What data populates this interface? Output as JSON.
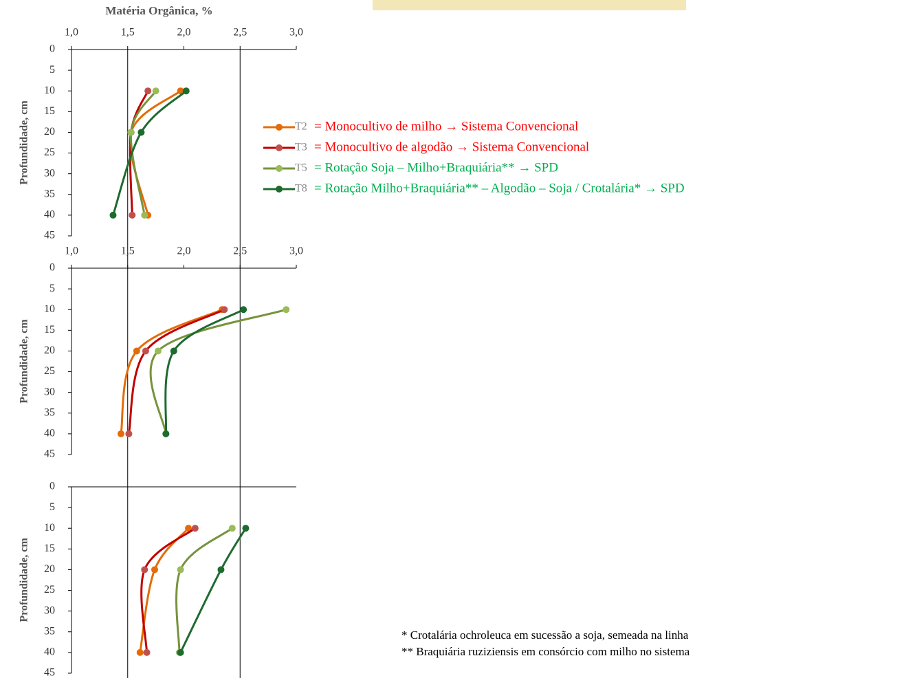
{
  "chart_data": [
    {
      "type": "line",
      "title": "Matéria Orgânica, %",
      "ylabel": "Profundidade, cm",
      "xlim": [
        1,
        3
      ],
      "xticks": [
        {
          "value": 1,
          "label": "1,0"
        },
        {
          "value": 1.5,
          "label": "1,5"
        },
        {
          "value": 2,
          "label": "2,0"
        },
        {
          "value": 2.5,
          "label": "2,5"
        },
        {
          "value": 3,
          "label": "3,0"
        }
      ],
      "ylim": [
        0,
        45
      ],
      "yticks": [
        0,
        5,
        10,
        15,
        20,
        25,
        30,
        35,
        40,
        45
      ],
      "y_inverted": true,
      "reference_lines": [
        1.5,
        2.5
      ],
      "series": [
        {
          "name": "T2",
          "color": "#e36c09",
          "marker_color": "#e36c09",
          "x": [
            1.97,
            1.53,
            1.68
          ],
          "y": [
            10,
            20,
            40
          ]
        },
        {
          "name": "T3",
          "color": "#c00000",
          "marker_color": "#c0504d",
          "x": [
            1.68,
            1.53,
            1.54
          ],
          "y": [
            10,
            20,
            40
          ]
        },
        {
          "name": "T5",
          "color": "#77933c",
          "marker_color": "#9bbb59",
          "x": [
            1.75,
            1.53,
            1.65
          ],
          "y": [
            10,
            20,
            40
          ]
        },
        {
          "name": "T8",
          "color": "#1e6b30",
          "marker_color": "#1e6b30",
          "x": [
            2.02,
            1.62,
            1.37
          ],
          "y": [
            10,
            20,
            40
          ]
        }
      ]
    },
    {
      "type": "line",
      "ylabel": "Profundidade, cm",
      "xlim": [
        1,
        3
      ],
      "xticks": [
        {
          "value": 1,
          "label": "1,0"
        },
        {
          "value": 1.5,
          "label": "1,5"
        },
        {
          "value": 2,
          "label": "2,0"
        },
        {
          "value": 2.5,
          "label": "2,5"
        },
        {
          "value": 3,
          "label": "3,0"
        }
      ],
      "ylim": [
        0,
        45
      ],
      "yticks": [
        0,
        5,
        10,
        15,
        20,
        25,
        30,
        35,
        40,
        45
      ],
      "y_inverted": true,
      "reference_lines": [
        1.5,
        2.5
      ],
      "series": [
        {
          "name": "T2",
          "color": "#e36c09",
          "marker_color": "#e36c09",
          "x": [
            2.34,
            1.58,
            1.44
          ],
          "y": [
            10,
            20,
            40
          ]
        },
        {
          "name": "T3",
          "color": "#c00000",
          "marker_color": "#c0504d",
          "x": [
            2.36,
            1.66,
            1.51
          ],
          "y": [
            10,
            20,
            40
          ]
        },
        {
          "name": "T5",
          "color": "#77933c",
          "marker_color": "#9bbb59",
          "x": [
            2.91,
            1.77,
            1.84
          ],
          "y": [
            10,
            20,
            40
          ]
        },
        {
          "name": "T8",
          "color": "#1e6b30",
          "marker_color": "#1e6b30",
          "x": [
            2.53,
            1.91,
            1.84
          ],
          "y": [
            10,
            20,
            40
          ]
        }
      ]
    },
    {
      "type": "line",
      "ylabel": "Profundidade, cm",
      "xlim": [
        1,
        3
      ],
      "xticks": [],
      "ylim": [
        0,
        45
      ],
      "yticks": [
        0,
        5,
        10,
        15,
        20,
        25,
        30,
        35,
        40,
        45
      ],
      "y_inverted": true,
      "reference_lines": [
        1.5,
        2.5
      ],
      "series": [
        {
          "name": "T2",
          "color": "#e36c09",
          "marker_color": "#e36c09",
          "x": [
            2.04,
            1.74,
            1.61
          ],
          "y": [
            10,
            20,
            40
          ]
        },
        {
          "name": "T3",
          "color": "#c00000",
          "marker_color": "#c0504d",
          "x": [
            2.1,
            1.65,
            1.67
          ],
          "y": [
            10,
            20,
            40
          ]
        },
        {
          "name": "T5",
          "color": "#77933c",
          "marker_color": "#9bbb59",
          "x": [
            2.43,
            1.97,
            1.96
          ],
          "y": [
            10,
            20,
            40
          ]
        },
        {
          "name": "T8",
          "color": "#1e6b30",
          "marker_color": "#1e6b30",
          "x": [
            2.55,
            2.33,
            1.97
          ],
          "y": [
            10,
            20,
            40
          ]
        }
      ]
    }
  ],
  "legend": [
    {
      "text": "= Monocultivo de milho → Sistema Convencional",
      "color": "#ff0000"
    },
    {
      "text": "= Monocultivo de algodão → Sistema Convencional",
      "color": "#ff0000"
    },
    {
      "text": "= Rotação Soja – Milho+Braquiária** → SPD",
      "color": "#00b050"
    },
    {
      "text": "= Rotação Milho+Braquiária** – Algodão – Soja / Crotalária* → SPD",
      "color": "#00b050"
    }
  ],
  "footnotes": [
    "* Crotalária ochroleuca em sucessão a soja, semeada na linha",
    "** Braquiária ruziziensis em consórcio com milho no sistema"
  ]
}
